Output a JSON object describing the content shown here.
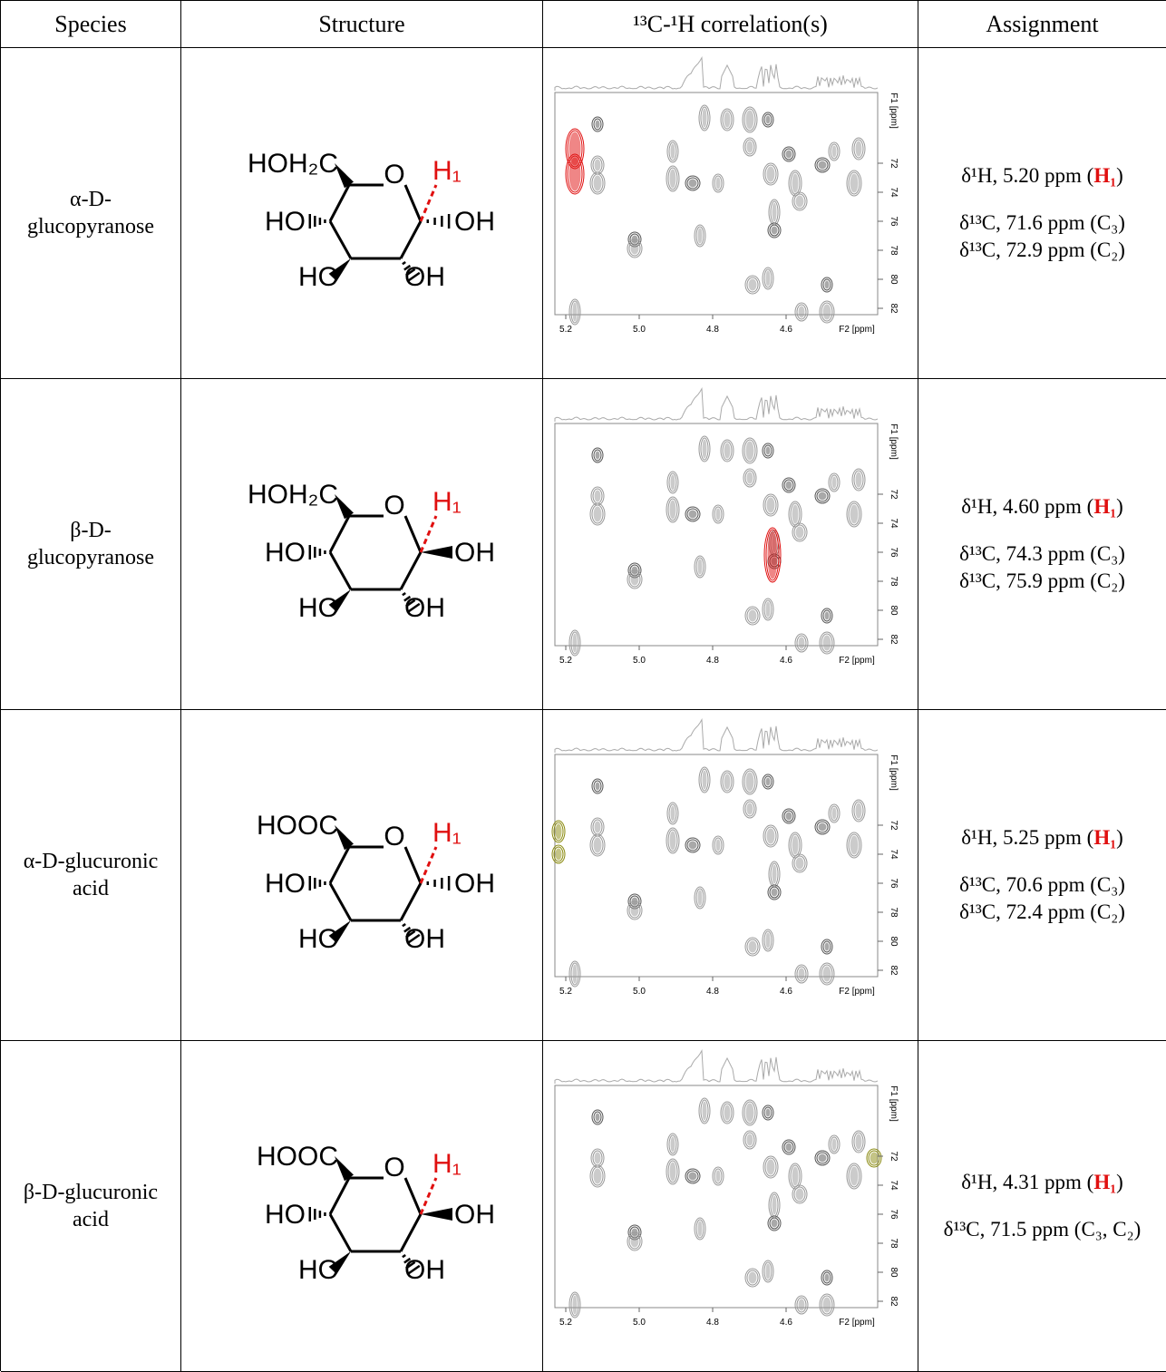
{
  "table": {
    "header": [
      "Species",
      "Structure",
      "¹³C-¹H correlation(s)",
      "Assignment"
    ],
    "spectrum_axes": {
      "x_labels": [
        "5.2",
        "5.0",
        "4.8",
        "4.6"
      ],
      "x_title": "F2 [ppm]",
      "y_labels": [
        "72",
        "74",
        "76",
        "78",
        "80",
        "82"
      ],
      "y_title": "F1 [ppm]"
    },
    "rows": [
      {
        "species": "α-D-glucopyranose",
        "structure": {
          "substituent": "HOH₂C",
          "ring_o": "O",
          "h1": "H₁",
          "oh_left": "HO",
          "oh_c1": "OH",
          "oh_bottom_left": "HO",
          "oh_bottom_right": "OH",
          "c1_bond": "hash"
        },
        "highlight_color": "#e01010",
        "assignment": [
          [
            "δ¹H, 5.20 ppm (",
            "H₁",
            ")"
          ],
          [
            "δ¹³C, 71.6 ppm (C₃)"
          ],
          [
            "δ¹³C, 72.9 ppm (C₂)"
          ]
        ]
      },
      {
        "species": "β-D-glucopyranose",
        "structure": {
          "substituent": "HOH₂C",
          "ring_o": "O",
          "h1": "H₁",
          "oh_left": "HO",
          "oh_c1": "OH",
          "oh_bottom_left": "HO",
          "oh_bottom_right": "OH",
          "c1_bond": "wedge"
        },
        "highlight_color": "#e01010",
        "assignment": [
          [
            "δ¹H, 4.60 ppm (",
            "H₁",
            ")"
          ],
          [
            "δ¹³C, 74.3 ppm (C₃)"
          ],
          [
            "δ¹³C, 75.9 ppm (C₂)"
          ]
        ]
      },
      {
        "species": "α-D-glucuronic acid",
        "structure": {
          "substituent": "HOOC",
          "ring_o": "O",
          "h1": "H₁",
          "oh_left": "HO",
          "oh_c1": "OH",
          "oh_bottom_left": "HO",
          "oh_bottom_right": "OH",
          "c1_bond": "hash"
        },
        "highlight_color": "#8a8a10",
        "assignment": [
          [
            "δ¹H, 5.25 ppm (",
            "H₁",
            ")"
          ],
          [
            "δ¹³C, 70.6 ppm (C₃)"
          ],
          [
            "δ¹³C, 72.4 ppm (C₂)"
          ]
        ]
      },
      {
        "species": "β-D-glucuronic acid",
        "structure": {
          "substituent": "HOOC",
          "ring_o": "O",
          "h1": "H₁",
          "oh_left": "HO",
          "oh_c1": "OH",
          "oh_bottom_left": "HO",
          "oh_bottom_right": "OH",
          "c1_bond": "wedge"
        },
        "highlight_color": "#8a8a10",
        "assignment": [
          [
            "δ¹H, 4.31 ppm (",
            "H₁",
            ")"
          ],
          [
            "δ¹³C, 71.5 ppm (C₃, C₂)"
          ]
        ]
      }
    ]
  }
}
